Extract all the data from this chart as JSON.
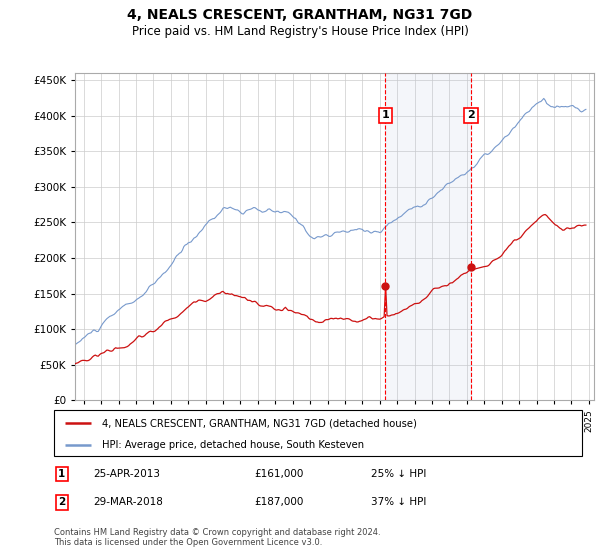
{
  "title": "4, NEALS CRESCENT, GRANTHAM, NG31 7GD",
  "subtitle": "Price paid vs. HM Land Registry's House Price Index (HPI)",
  "ylim": [
    0,
    460000
  ],
  "yticks": [
    0,
    50000,
    100000,
    150000,
    200000,
    250000,
    300000,
    350000,
    400000,
    450000
  ],
  "xlim_start": 1995.5,
  "xlim_end": 2025.3,
  "background_color": "#ffffff",
  "grid_color": "#cccccc",
  "hpi_color": "#7799cc",
  "price_color": "#cc1111",
  "transaction1": {
    "date_num": 2013.32,
    "price": 161000,
    "label": "1",
    "date_str": "25-APR-2013",
    "pct": "25%"
  },
  "transaction2": {
    "date_num": 2018.24,
    "price": 187000,
    "label": "2",
    "date_str": "29-MAR-2018",
    "pct": "37%"
  },
  "legend_price_label": "4, NEALS CRESCENT, GRANTHAM, NG31 7GD (detached house)",
  "legend_hpi_label": "HPI: Average price, detached house, South Kesteven",
  "footnote": "Contains HM Land Registry data © Crown copyright and database right 2024.\nThis data is licensed under the Open Government Licence v3.0."
}
